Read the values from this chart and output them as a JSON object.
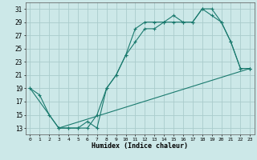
{
  "xlabel": "Humidex (Indice chaleur)",
  "background_color": "#cce8e8",
  "grid_color": "#aacccc",
  "line_color": "#1a7a6e",
  "xlim": [
    -0.5,
    23.5
  ],
  "ylim": [
    12,
    32
  ],
  "xticks": [
    0,
    1,
    2,
    3,
    4,
    5,
    6,
    7,
    8,
    9,
    10,
    11,
    12,
    13,
    14,
    15,
    16,
    17,
    18,
    19,
    20,
    21,
    22,
    23
  ],
  "yticks": [
    13,
    15,
    17,
    19,
    21,
    23,
    25,
    27,
    29,
    31
  ],
  "s1x": [
    0,
    1,
    2,
    3,
    4,
    5,
    6,
    7,
    8,
    9,
    10,
    11,
    12,
    13,
    14,
    15,
    16,
    17,
    18,
    19,
    20,
    21,
    22,
    23
  ],
  "s1y": [
    19,
    18,
    15,
    13,
    13,
    13,
    14,
    13,
    19,
    21,
    24,
    28,
    29,
    29,
    29,
    30,
    29,
    29,
    31,
    30,
    29,
    26,
    22,
    22
  ],
  "s2x": [
    3,
    4,
    5,
    6,
    7,
    8,
    9,
    10,
    11,
    12,
    13,
    14,
    15,
    16,
    17,
    18,
    19,
    20,
    21,
    22,
    23
  ],
  "s2y": [
    13,
    13,
    13,
    13,
    15,
    19,
    21,
    24,
    26,
    28,
    28,
    29,
    29,
    29,
    29,
    31,
    31,
    29,
    26,
    22,
    22
  ],
  "s3x": [
    0,
    3,
    23
  ],
  "s3y": [
    19,
    13,
    22
  ]
}
